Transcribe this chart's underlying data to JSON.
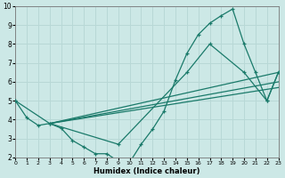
{
  "xlabel": "Humidex (Indice chaleur)",
  "xlim": [
    0,
    23
  ],
  "ylim": [
    2,
    10
  ],
  "xticks": [
    0,
    1,
    2,
    3,
    4,
    5,
    6,
    7,
    8,
    9,
    10,
    11,
    12,
    13,
    14,
    15,
    16,
    17,
    18,
    19,
    20,
    21,
    22,
    23
  ],
  "yticks": [
    2,
    3,
    4,
    5,
    6,
    7,
    8,
    9,
    10
  ],
  "bg_color": "#cce8e6",
  "grid_color": "#b8d8d6",
  "line_color": "#1a7a6a",
  "curve1_x": [
    0,
    1,
    2,
    3,
    4,
    5,
    6,
    7,
    8,
    9,
    10,
    11,
    12,
    13,
    14,
    15,
    16,
    17,
    18,
    19,
    20,
    21,
    22,
    23
  ],
  "curve1_y": [
    5.0,
    4.1,
    3.7,
    3.8,
    3.55,
    2.9,
    2.55,
    2.2,
    2.2,
    1.8,
    1.75,
    2.7,
    3.5,
    4.45,
    6.1,
    7.5,
    8.5,
    9.1,
    9.5,
    9.85,
    8.0,
    6.5,
    5.0,
    6.5
  ],
  "curve2_x": [
    0,
    3,
    9,
    15,
    17,
    20,
    22,
    23
  ],
  "curve2_y": [
    5.0,
    3.8,
    2.7,
    6.5,
    8.0,
    6.5,
    5.0,
    6.5
  ],
  "line1_x": [
    3,
    23
  ],
  "line1_y": [
    3.8,
    6.5
  ],
  "line2_x": [
    3,
    23
  ],
  "line2_y": [
    3.8,
    6.0
  ],
  "line3_x": [
    3,
    23
  ],
  "line3_y": [
    3.8,
    5.7
  ]
}
